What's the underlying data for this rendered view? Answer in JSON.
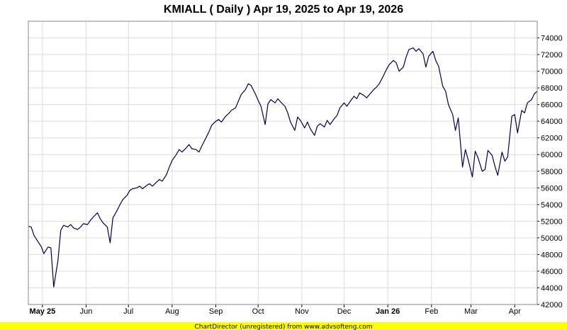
{
  "chart_data": {
    "type": "line",
    "title": "KMIALL ( Daily ) Apr 19, 2025 to Apr 19, 2026",
    "xlabel": "",
    "ylabel": "",
    "ylim": [
      42000,
      76000
    ],
    "yticks": [
      42000,
      44000,
      46000,
      48000,
      50000,
      52000,
      54000,
      56000,
      58000,
      60000,
      62000,
      64000,
      66000,
      68000,
      70000,
      72000,
      74000
    ],
    "ytick_labels": [
      "42000",
      "44000",
      "46000",
      "48000",
      "50000",
      "52000",
      "54000",
      "56000",
      "58000",
      "60000",
      "62000",
      "64000",
      "66000",
      "68000",
      "70000",
      "72000",
      "74000"
    ],
    "x_range": [
      "2025-04-21",
      "2026-04-17"
    ],
    "xticks": [
      {
        "date": "2025-05-01",
        "label": "May 25",
        "bold": true
      },
      {
        "date": "2025-06-01",
        "label": "Jun",
        "bold": false
      },
      {
        "date": "2025-07-01",
        "label": "Jul",
        "bold": false
      },
      {
        "date": "2025-08-01",
        "label": "Aug",
        "bold": false
      },
      {
        "date": "2025-09-01",
        "label": "Sep",
        "bold": false
      },
      {
        "date": "2025-10-01",
        "label": "Oct",
        "bold": false
      },
      {
        "date": "2025-11-01",
        "label": "Nov",
        "bold": false
      },
      {
        "date": "2025-12-01",
        "label": "Dec",
        "bold": false
      },
      {
        "date": "2026-01-01",
        "label": "Jan 26",
        "bold": true
      },
      {
        "date": "2026-02-01",
        "label": "Feb",
        "bold": false
      },
      {
        "date": "2026-03-01",
        "label": "Mar",
        "bold": false
      },
      {
        "date": "2026-04-01",
        "label": "Apr",
        "bold": false
      }
    ],
    "grid": true,
    "y_axis_side": "right",
    "line_color": "#000050",
    "grid_color": "#dddddd",
    "series": [
      {
        "values": [
          [
            "2025-04-21",
            51400
          ],
          [
            "2025-04-23",
            51300
          ],
          [
            "2025-04-25",
            50300
          ],
          [
            "2025-04-28",
            49500
          ],
          [
            "2025-04-30",
            49000
          ],
          [
            "2025-05-02",
            48100
          ],
          [
            "2025-05-05",
            48900
          ],
          [
            "2025-05-07",
            48800
          ],
          [
            "2025-05-09",
            44100
          ],
          [
            "2025-05-12",
            47300
          ],
          [
            "2025-05-14",
            50900
          ],
          [
            "2025-05-16",
            51500
          ],
          [
            "2025-05-19",
            51300
          ],
          [
            "2025-05-21",
            51600
          ],
          [
            "2025-05-23",
            51200
          ],
          [
            "2025-05-26",
            51000
          ],
          [
            "2025-05-28",
            51300
          ],
          [
            "2025-05-30",
            51700
          ],
          [
            "2025-06-02",
            51600
          ],
          [
            "2025-06-04",
            52100
          ],
          [
            "2025-06-06",
            52500
          ],
          [
            "2025-06-09",
            53000
          ],
          [
            "2025-06-11",
            52300
          ],
          [
            "2025-06-13",
            51800
          ],
          [
            "2025-06-16",
            51300
          ],
          [
            "2025-06-18",
            49400
          ],
          [
            "2025-06-20",
            52400
          ],
          [
            "2025-06-23",
            53300
          ],
          [
            "2025-06-25",
            54000
          ],
          [
            "2025-06-27",
            54600
          ],
          [
            "2025-06-30",
            55100
          ],
          [
            "2025-07-02",
            55700
          ],
          [
            "2025-07-04",
            55900
          ],
          [
            "2025-07-07",
            56000
          ],
          [
            "2025-07-09",
            56200
          ],
          [
            "2025-07-11",
            55900
          ],
          [
            "2025-07-14",
            56300
          ],
          [
            "2025-07-16",
            56500
          ],
          [
            "2025-07-18",
            56200
          ],
          [
            "2025-07-21",
            56700
          ],
          [
            "2025-07-23",
            57000
          ],
          [
            "2025-07-25",
            56800
          ],
          [
            "2025-07-28",
            57600
          ],
          [
            "2025-07-30",
            58500
          ],
          [
            "2025-08-01",
            59300
          ],
          [
            "2025-08-04",
            60000
          ],
          [
            "2025-08-06",
            60600
          ],
          [
            "2025-08-08",
            60300
          ],
          [
            "2025-08-11",
            60800
          ],
          [
            "2025-08-13",
            61200
          ],
          [
            "2025-08-15",
            60700
          ],
          [
            "2025-08-18",
            60600
          ],
          [
            "2025-08-20",
            60300
          ],
          [
            "2025-08-22",
            61000
          ],
          [
            "2025-08-25",
            62000
          ],
          [
            "2025-08-27",
            62700
          ],
          [
            "2025-08-29",
            63500
          ],
          [
            "2025-09-01",
            64000
          ],
          [
            "2025-09-03",
            64200
          ],
          [
            "2025-09-05",
            63900
          ],
          [
            "2025-09-08",
            64600
          ],
          [
            "2025-09-10",
            64900
          ],
          [
            "2025-09-12",
            65300
          ],
          [
            "2025-09-15",
            65600
          ],
          [
            "2025-09-17",
            66400
          ],
          [
            "2025-09-19",
            67200
          ],
          [
            "2025-09-22",
            67800
          ],
          [
            "2025-09-24",
            68500
          ],
          [
            "2025-09-26",
            68300
          ],
          [
            "2025-09-29",
            67300
          ],
          [
            "2025-10-01",
            66500
          ],
          [
            "2025-10-03",
            65800
          ],
          [
            "2025-10-06",
            63600
          ],
          [
            "2025-10-08",
            66100
          ],
          [
            "2025-10-10",
            66600
          ],
          [
            "2025-10-13",
            66200
          ],
          [
            "2025-10-15",
            66700
          ],
          [
            "2025-10-17",
            66300
          ],
          [
            "2025-10-20",
            65800
          ],
          [
            "2025-10-22",
            65000
          ],
          [
            "2025-10-24",
            63900
          ],
          [
            "2025-10-27",
            62900
          ],
          [
            "2025-10-29",
            64500
          ],
          [
            "2025-10-31",
            64100
          ],
          [
            "2025-11-03",
            63200
          ],
          [
            "2025-11-05",
            63900
          ],
          [
            "2025-11-07",
            63100
          ],
          [
            "2025-11-10",
            62300
          ],
          [
            "2025-11-12",
            63400
          ],
          [
            "2025-11-14",
            63700
          ],
          [
            "2025-11-17",
            63300
          ],
          [
            "2025-11-19",
            64100
          ],
          [
            "2025-11-21",
            63600
          ],
          [
            "2025-11-24",
            64300
          ],
          [
            "2025-11-26",
            64700
          ],
          [
            "2025-11-28",
            65600
          ],
          [
            "2025-12-01",
            66200
          ],
          [
            "2025-12-03",
            65800
          ],
          [
            "2025-12-05",
            66300
          ],
          [
            "2025-12-08",
            67000
          ],
          [
            "2025-12-10",
            66700
          ],
          [
            "2025-12-12",
            67400
          ],
          [
            "2025-12-15",
            67100
          ],
          [
            "2025-12-17",
            66800
          ],
          [
            "2025-12-19",
            67200
          ],
          [
            "2025-12-22",
            67800
          ],
          [
            "2025-12-24",
            68100
          ],
          [
            "2025-12-26",
            68500
          ],
          [
            "2025-12-29",
            69500
          ],
          [
            "2025-12-31",
            70200
          ],
          [
            "2026-01-02",
            70800
          ],
          [
            "2026-01-05",
            71300
          ],
          [
            "2026-01-07",
            71000
          ],
          [
            "2026-01-09",
            70000
          ],
          [
            "2026-01-12",
            70500
          ],
          [
            "2026-01-14",
            71700
          ],
          [
            "2026-01-16",
            72600
          ],
          [
            "2026-01-19",
            72800
          ],
          [
            "2026-01-21",
            72400
          ],
          [
            "2026-01-23",
            72700
          ],
          [
            "2026-01-26",
            72100
          ],
          [
            "2026-01-28",
            70500
          ],
          [
            "2026-01-30",
            71800
          ],
          [
            "2026-02-02",
            72400
          ],
          [
            "2026-02-04",
            71300
          ],
          [
            "2026-02-06",
            70600
          ],
          [
            "2026-02-09",
            68200
          ],
          [
            "2026-02-11",
            67600
          ],
          [
            "2026-02-13",
            66000
          ],
          [
            "2026-02-16",
            64800
          ],
          [
            "2026-02-18",
            62900
          ],
          [
            "2026-02-20",
            64400
          ],
          [
            "2026-02-23",
            58500
          ],
          [
            "2026-02-25",
            60600
          ],
          [
            "2026-02-27",
            59400
          ],
          [
            "2026-03-02",
            57300
          ],
          [
            "2026-03-04",
            60400
          ],
          [
            "2026-03-06",
            59600
          ],
          [
            "2026-03-09",
            58000
          ],
          [
            "2026-03-11",
            58200
          ],
          [
            "2026-03-13",
            60500
          ],
          [
            "2026-03-16",
            59900
          ],
          [
            "2026-03-18",
            58600
          ],
          [
            "2026-03-20",
            57500
          ],
          [
            "2026-03-23",
            60300
          ],
          [
            "2026-03-25",
            59200
          ],
          [
            "2026-03-27",
            59700
          ],
          [
            "2026-03-30",
            64600
          ],
          [
            "2026-04-01",
            64800
          ],
          [
            "2026-04-03",
            62600
          ],
          [
            "2026-04-06",
            65300
          ],
          [
            "2026-04-08",
            65000
          ],
          [
            "2026-04-10",
            66200
          ],
          [
            "2026-04-13",
            66600
          ],
          [
            "2026-04-15",
            67300
          ],
          [
            "2026-04-17",
            67600
          ]
        ]
      }
    ]
  },
  "footer": {
    "text": "ChartDirector (unregistered) from www.advsofteng.com",
    "background": "#ffff00"
  }
}
